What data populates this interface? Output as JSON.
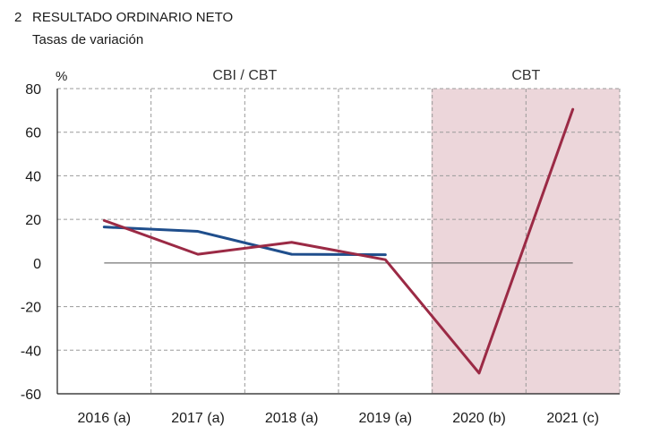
{
  "figure": {
    "number": "2",
    "title": "RESULTADO ORDINARIO NETO",
    "subtitle": "Tasas de variación"
  },
  "chart_data": {
    "type": "line",
    "unit_label": "%",
    "categories": [
      "2016 (a)",
      "2017 (a)",
      "2018 (a)",
      "2019 (a)",
      "2020 (b)",
      "2021 (c)"
    ],
    "ylim": [
      -60,
      80
    ],
    "yticks": [
      80,
      60,
      40,
      20,
      0,
      -20,
      -40,
      -60
    ],
    "grid": true,
    "regions": [
      {
        "label": "CBI / CBT",
        "from_category": 0,
        "to_category": 3,
        "shaded": false
      },
      {
        "label": "CBT",
        "from_category": 4,
        "to_category": 5,
        "shaded": true
      }
    ],
    "series": [
      {
        "color": "#1f4e8c",
        "values": [
          16.5,
          14.5,
          4.0,
          3.8,
          null,
          null
        ]
      },
      {
        "color": "#9b2a45",
        "values": [
          19.5,
          4.0,
          9.5,
          1.5,
          -50.5,
          70.5
        ]
      }
    ],
    "colors": {
      "shade": "#ecd6da",
      "grid": "#9a9a9a",
      "axis": "#1a1a1a",
      "zero": "#555555"
    }
  }
}
